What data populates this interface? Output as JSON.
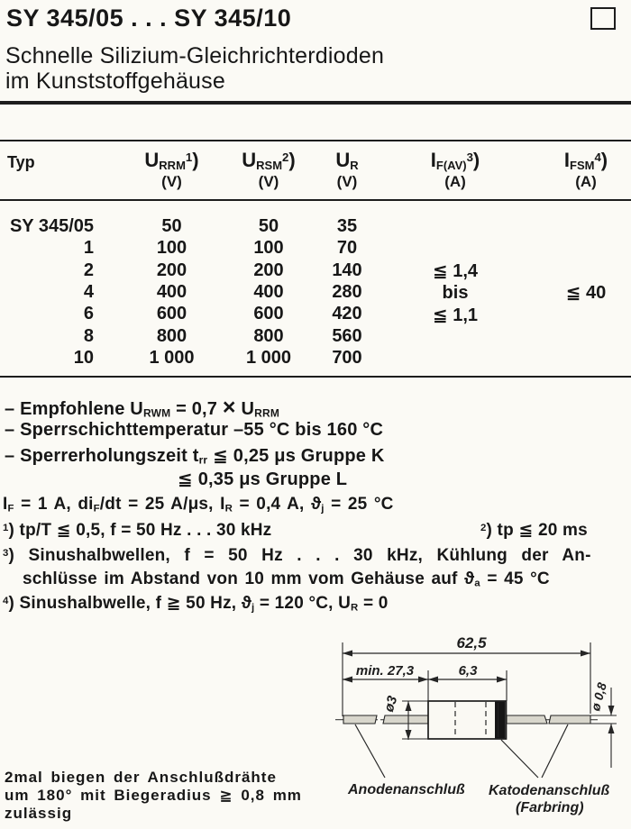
{
  "header": {
    "title": "SY 345/05 . . . SY 345/10",
    "subtitle1": "Schnelle Silizium-Gleichrichterdioden",
    "subtitle2": "im Kunststoffgehäuse"
  },
  "table": {
    "col_typ": "Typ",
    "cols": [
      {
        "label": [
          "U",
          {
            "t": "RRM",
            "s": "sub"
          },
          {
            "t": "1",
            "s": "sup"
          },
          ")"
        ],
        "unit": "(V)"
      },
      {
        "label": [
          "U",
          {
            "t": "RSM",
            "s": "sub"
          },
          {
            "t": "2",
            "s": "sup"
          },
          ")"
        ],
        "unit": "(V)"
      },
      {
        "label": [
          "U",
          {
            "t": "R",
            "s": "sub"
          }
        ],
        "unit": "(V)"
      },
      {
        "label": [
          "I",
          {
            "t": "F(AV)",
            "s": "sub"
          },
          {
            "t": "3",
            "s": "sup"
          },
          ")"
        ],
        "unit": "(A)"
      },
      {
        "label": [
          "I",
          {
            "t": "FSM",
            "s": "sub"
          },
          {
            "t": "4",
            "s": "sup"
          },
          ")"
        ],
        "unit": "(A)"
      }
    ],
    "rows": [
      {
        "typ": "SY 345/05",
        "urrm": "50",
        "ursm": "50",
        "ur": "35"
      },
      {
        "typ": "1",
        "urrm": "100",
        "ursm": "100",
        "ur": "70"
      },
      {
        "typ": "2",
        "urrm": "200",
        "ursm": "200",
        "ur": "140"
      },
      {
        "typ": "4",
        "urrm": "400",
        "ursm": "400",
        "ur": "280"
      },
      {
        "typ": "6",
        "urrm": "600",
        "ursm": "600",
        "ur": "420"
      },
      {
        "typ": "8",
        "urrm": "800",
        "ursm": "800",
        "ur": "560"
      },
      {
        "typ": "10",
        "urrm": "1 000",
        "ursm": "1 000",
        "ur": "700"
      }
    ],
    "ifav_lines": [
      "≦ 1,4",
      "bis",
      "≦ 1,1"
    ],
    "ifsm_value": "≦ 40"
  },
  "bullets": {
    "b1": [
      "– Empfohlene U",
      {
        "t": "RWM",
        "s": "sub"
      },
      " = 0,7 ",
      {
        "t": "×",
        "s": "bigx"
      },
      " U",
      {
        "t": "RRM",
        "s": "sub"
      }
    ],
    "b2": [
      "– Sperrschichttemperatur –55 °C bis 160 °C"
    ],
    "b3": [
      "– Sperrerholungszeit t",
      {
        "t": "rr",
        "s": "sub"
      },
      " ≦ 0,25 μs Gruppe K"
    ],
    "b3b": [
      "≦ 0,35 μs Gruppe L"
    ]
  },
  "notes": {
    "cond": [
      "I",
      {
        "t": "F",
        "s": "sub"
      },
      " = 1 A, di",
      {
        "t": "F",
        "s": "sub"
      },
      "/dt = 25 A/μs, I",
      {
        "t": "R",
        "s": "sub"
      },
      " = 0,4 A, ϑ",
      {
        "t": "j",
        "s": "sub"
      },
      " = 25 °C"
    ],
    "n1": [
      {
        "t": "1",
        "s": "sup"
      },
      ") tp/T ≦ 0,5, f = 50 Hz . . . 30 kHz"
    ],
    "n2": [
      {
        "t": "2",
        "s": "sup"
      },
      ") tp ≦ 20 ms"
    ],
    "n3a": [
      {
        "t": "3",
        "s": "sup"
      },
      ") Sinushalbwellen, f = 50 Hz . . . 30 kHz, Kühlung der An-"
    ],
    "n3b": [
      "schlüsse im Abstand von 10 mm vom Gehäuse auf ϑ",
      {
        "t": "a",
        "s": "sub"
      },
      " = 45 °C"
    ],
    "n4": [
      {
        "t": "4",
        "s": "sup"
      },
      ") Sinushalbwelle, f ≧ 50 Hz, ϑ",
      {
        "t": "j",
        "s": "sub"
      },
      " = 120 °C, U",
      {
        "t": "R",
        "s": "sub"
      },
      " = 0"
    ]
  },
  "bend_note": {
    "l1": "2mal biegen der Anschlußdrähte",
    "l2": "um 180° mit Biegeradius ≧ 0,8 mm",
    "l3": "zulässig"
  },
  "diagram": {
    "dim_total": "62,5",
    "dim_lead": "min. 27,3",
    "dim_body": "6,3",
    "dia_body": "ø3",
    "dia_wire": "ø 0,8",
    "anode_label": "Anodenanschluß",
    "cathode_label": "Katodenanschluß",
    "cathode_label2": "(Farbring)"
  },
  "colors": {
    "ink": "#1d1d1d",
    "paper": "#fbfaf5",
    "lead_fill": "#d8d6cc"
  }
}
